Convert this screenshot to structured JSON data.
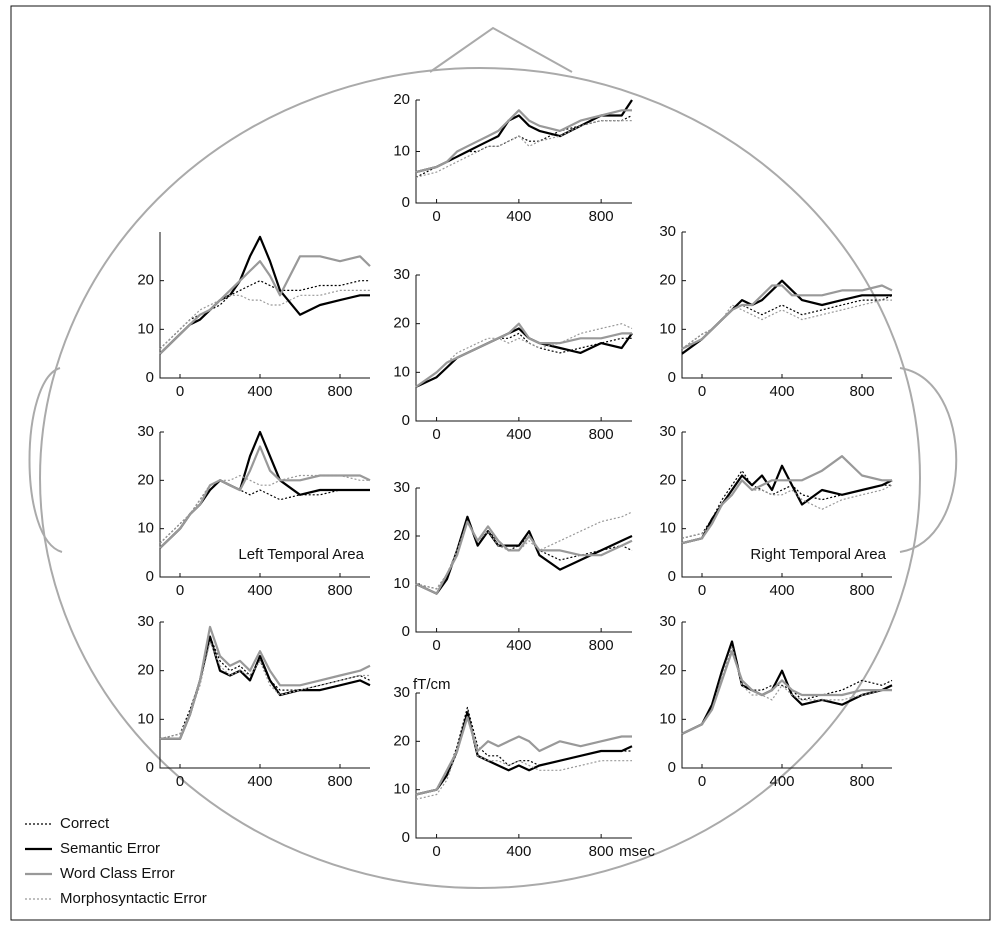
{
  "legend": {
    "entries": [
      {
        "name": "Correct",
        "color": "#000000",
        "style": "dotted",
        "width": 1.2
      },
      {
        "name": "Semantic Error",
        "color": "#000000",
        "style": "solid",
        "width": 2.2
      },
      {
        "name": "Word Class Error",
        "color": "#999999",
        "style": "solid",
        "width": 2.2
      },
      {
        "name": "Morphosyntactic Error",
        "color": "#999999",
        "style": "dotted",
        "width": 1.2
      }
    ]
  },
  "chart_data": [
    {
      "type": "line",
      "x": [
        -100,
        0,
        50,
        100,
        150,
        200,
        250,
        300,
        350,
        400,
        450,
        500,
        600,
        700,
        800,
        900,
        950
      ],
      "xlim": [
        -100,
        950
      ],
      "xticks": [
        0,
        400,
        800
      ],
      "ylim": [
        0,
        20
      ],
      "yticks": [
        0,
        10,
        20
      ],
      "series": [
        {
          "values": [
            5,
            7,
            8,
            9,
            10,
            10,
            11,
            11,
            12,
            13,
            12,
            12,
            14,
            15,
            16,
            16,
            17
          ]
        },
        {
          "values": [
            6,
            7,
            8,
            9,
            10,
            11,
            12,
            13,
            16,
            17,
            15,
            14,
            13,
            15,
            17,
            17,
            20
          ]
        },
        {
          "values": [
            6,
            7,
            8,
            10,
            11,
            12,
            13,
            14,
            16,
            18,
            16,
            15,
            14,
            16,
            17,
            18,
            18
          ]
        },
        {
          "values": [
            5,
            6,
            7,
            8,
            9,
            10,
            11,
            11,
            12,
            13,
            11,
            12,
            13,
            15,
            16,
            16,
            16
          ]
        }
      ]
    },
    {
      "type": "line",
      "x": [
        -100,
        0,
        50,
        100,
        150,
        200,
        250,
        300,
        350,
        400,
        450,
        500,
        600,
        700,
        800,
        900,
        950
      ],
      "xlim": [
        -100,
        950
      ],
      "xticks": [
        0,
        400,
        800
      ],
      "ylim": [
        0,
        30
      ],
      "yticks": [
        0,
        10,
        20
      ],
      "series": [
        {
          "values": [
            6,
            10,
            12,
            13,
            14,
            15,
            17,
            18,
            19,
            20,
            19,
            18,
            18,
            19,
            19,
            20,
            20
          ]
        },
        {
          "values": [
            5,
            9,
            11,
            12,
            14,
            16,
            17,
            20,
            25,
            29,
            24,
            18,
            13,
            15,
            16,
            17,
            17
          ]
        },
        {
          "values": [
            5,
            9,
            11,
            13,
            14,
            16,
            18,
            20,
            22,
            24,
            21,
            17,
            25,
            25,
            24,
            25,
            23
          ]
        },
        {
          "values": [
            6,
            10,
            12,
            14,
            15,
            16,
            17,
            17,
            16,
            16,
            15,
            15,
            17,
            17,
            18,
            18,
            18
          ]
        }
      ]
    },
    {
      "type": "line",
      "x": [
        -100,
        0,
        50,
        100,
        150,
        200,
        250,
        300,
        350,
        400,
        450,
        500,
        600,
        700,
        800,
        900,
        950
      ],
      "xlim": [
        -100,
        950
      ],
      "xticks": [
        0,
        400,
        800
      ],
      "ylim": [
        0,
        30
      ],
      "yticks": [
        0,
        10,
        20,
        30
      ],
      "series": [
        {
          "values": [
            7,
            10,
            12,
            13,
            14,
            15,
            16,
            17,
            17,
            18,
            16,
            15,
            14,
            15,
            16,
            17,
            17
          ]
        },
        {
          "values": [
            7,
            9,
            11,
            13,
            14,
            15,
            16,
            17,
            18,
            19,
            17,
            16,
            15,
            14,
            16,
            15,
            18
          ]
        },
        {
          "values": [
            7,
            10,
            12,
            13,
            14,
            15,
            16,
            17,
            18,
            20,
            17,
            16,
            16,
            17,
            17,
            18,
            18
          ]
        },
        {
          "values": [
            7,
            10,
            12,
            14,
            15,
            16,
            17,
            17,
            16,
            17,
            16,
            15,
            16,
            18,
            19,
            20,
            19
          ]
        }
      ]
    },
    {
      "type": "line",
      "x": [
        -100,
        0,
        50,
        100,
        150,
        200,
        250,
        300,
        350,
        400,
        450,
        500,
        600,
        700,
        800,
        900,
        950
      ],
      "xlim": [
        -100,
        950
      ],
      "xticks": [
        0,
        400,
        800
      ],
      "ylim": [
        0,
        30
      ],
      "yticks": [
        0,
        10,
        20,
        30
      ],
      "series": [
        {
          "values": [
            6,
            9,
            10,
            12,
            14,
            15,
            14,
            13,
            14,
            15,
            14,
            13,
            14,
            15,
            16,
            16,
            17
          ]
        },
        {
          "values": [
            5,
            8,
            10,
            12,
            14,
            16,
            15,
            16,
            18,
            20,
            18,
            16,
            15,
            16,
            17,
            17,
            17
          ]
        },
        {
          "values": [
            6,
            8,
            10,
            12,
            14,
            15,
            15,
            17,
            19,
            19,
            17,
            17,
            17,
            18,
            18,
            19,
            18
          ]
        },
        {
          "values": [
            6,
            9,
            10,
            12,
            15,
            14,
            13,
            12,
            13,
            14,
            13,
            12,
            13,
            14,
            15,
            16,
            16
          ]
        }
      ]
    },
    {
      "type": "line",
      "annotation": "Left Temporal Area",
      "x": [
        -100,
        0,
        50,
        100,
        150,
        200,
        250,
        300,
        350,
        400,
        450,
        500,
        600,
        700,
        800,
        900,
        950
      ],
      "xlim": [
        -100,
        950
      ],
      "xticks": [
        0,
        400,
        800
      ],
      "ylim": [
        0,
        30
      ],
      "yticks": [
        0,
        10,
        20,
        30
      ],
      "series": [
        {
          "values": [
            7,
            11,
            13,
            16,
            19,
            20,
            19,
            18,
            17,
            18,
            17,
            16,
            17,
            17,
            18,
            18,
            18
          ]
        },
        {
          "values": [
            6,
            10,
            13,
            15,
            18,
            20,
            19,
            18,
            25,
            30,
            25,
            20,
            17,
            18,
            18,
            18,
            18
          ]
        },
        {
          "values": [
            6,
            10,
            13,
            15,
            19,
            20,
            19,
            18,
            22,
            27,
            22,
            20,
            20,
            21,
            21,
            21,
            20
          ]
        },
        {
          "values": [
            7,
            11,
            13,
            16,
            19,
            20,
            20,
            21,
            20,
            19,
            19,
            20,
            21,
            21,
            21,
            20,
            20
          ]
        }
      ]
    },
    {
      "type": "line",
      "x": [
        -100,
        0,
        50,
        100,
        150,
        200,
        250,
        300,
        350,
        400,
        450,
        500,
        600,
        700,
        800,
        900,
        950
      ],
      "xlim": [
        -100,
        950
      ],
      "xticks": [
        0,
        400,
        800
      ],
      "ylim": [
        0,
        30
      ],
      "yticks": [
        0,
        10,
        20,
        30
      ],
      "series": [
        {
          "values": [
            10,
            9,
            12,
            17,
            23,
            19,
            21,
            19,
            17,
            18,
            20,
            17,
            15,
            16,
            17,
            18,
            17
          ]
        },
        {
          "values": [
            10,
            8,
            11,
            17,
            24,
            18,
            21,
            18,
            18,
            18,
            21,
            16,
            13,
            15,
            17,
            19,
            20
          ]
        },
        {
          "values": [
            10,
            8,
            12,
            16,
            23,
            19,
            22,
            19,
            17,
            17,
            20,
            17,
            17,
            16,
            16,
            18,
            19
          ]
        },
        {
          "values": [
            10,
            9,
            12,
            17,
            23,
            19,
            21,
            18,
            17,
            17,
            19,
            17,
            19,
            21,
            23,
            24,
            25
          ]
        }
      ]
    },
    {
      "type": "line",
      "annotation": "Right Temporal Area",
      "x": [
        -100,
        0,
        50,
        100,
        150,
        200,
        250,
        300,
        350,
        400,
        450,
        500,
        600,
        700,
        800,
        900,
        950
      ],
      "xlim": [
        -100,
        950
      ],
      "xticks": [
        0,
        400,
        800
      ],
      "ylim": [
        0,
        30
      ],
      "yticks": [
        0,
        10,
        20,
        30
      ],
      "series": [
        {
          "values": [
            8,
            9,
            12,
            16,
            19,
            22,
            19,
            18,
            17,
            18,
            19,
            17,
            16,
            17,
            18,
            19,
            19
          ]
        },
        {
          "values": [
            7,
            8,
            12,
            15,
            18,
            21,
            19,
            21,
            18,
            23,
            19,
            15,
            18,
            17,
            18,
            19,
            20
          ]
        },
        {
          "values": [
            7,
            8,
            11,
            15,
            17,
            20,
            18,
            19,
            20,
            20,
            20,
            20,
            22,
            25,
            21,
            20,
            20
          ]
        },
        {
          "values": [
            8,
            9,
            11,
            15,
            17,
            20,
            18,
            18,
            17,
            17,
            18,
            16,
            14,
            16,
            17,
            18,
            19
          ]
        }
      ]
    },
    {
      "type": "line",
      "x": [
        -100,
        0,
        50,
        100,
        150,
        200,
        250,
        300,
        350,
        400,
        450,
        500,
        600,
        700,
        800,
        900,
        950
      ],
      "xlim": [
        -100,
        950
      ],
      "xticks": [
        0,
        400,
        800
      ],
      "ylim": [
        0,
        30
      ],
      "yticks": [
        0,
        10,
        20,
        30
      ],
      "series": [
        {
          "values": [
            6,
            7,
            12,
            18,
            27,
            22,
            20,
            21,
            19,
            22,
            18,
            16,
            16,
            17,
            18,
            19,
            18
          ]
        },
        {
          "values": [
            6,
            6,
            11,
            18,
            27,
            20,
            19,
            20,
            18,
            23,
            18,
            15,
            16,
            16,
            17,
            18,
            17
          ]
        },
        {
          "values": [
            6,
            6,
            11,
            18,
            29,
            23,
            21,
            22,
            20,
            24,
            20,
            17,
            17,
            18,
            19,
            20,
            21
          ]
        },
        {
          "values": [
            6,
            7,
            11,
            17,
            26,
            21,
            19,
            20,
            19,
            22,
            17,
            15,
            16,
            17,
            18,
            19,
            19
          ]
        }
      ]
    },
    {
      "type": "line",
      "xlabel": "msec",
      "ylabel": "fT/cm",
      "x": [
        -100,
        0,
        50,
        100,
        150,
        200,
        250,
        300,
        350,
        400,
        450,
        500,
        600,
        700,
        800,
        900,
        950
      ],
      "xlim": [
        -100,
        950
      ],
      "xticks": [
        0,
        400,
        800
      ],
      "ylim": [
        0,
        30
      ],
      "yticks": [
        0,
        10,
        20,
        30
      ],
      "series": [
        {
          "values": [
            9,
            10,
            13,
            19,
            27,
            19,
            17,
            17,
            15,
            16,
            16,
            15,
            16,
            17,
            18,
            18,
            18
          ]
        },
        {
          "values": [
            9,
            10,
            13,
            18,
            26,
            17,
            16,
            15,
            14,
            15,
            14,
            15,
            16,
            17,
            18,
            18,
            19
          ]
        },
        {
          "values": [
            9,
            10,
            14,
            18,
            25,
            18,
            20,
            19,
            20,
            21,
            20,
            18,
            20,
            19,
            20,
            21,
            21
          ]
        },
        {
          "values": [
            8,
            9,
            12,
            18,
            25,
            17,
            16,
            16,
            15,
            16,
            15,
            14,
            14,
            15,
            16,
            16,
            16
          ]
        }
      ]
    },
    {
      "type": "line",
      "x": [
        -100,
        0,
        50,
        100,
        150,
        200,
        250,
        300,
        350,
        400,
        450,
        500,
        600,
        700,
        800,
        900,
        950
      ],
      "xlim": [
        -100,
        950
      ],
      "xticks": [
        0,
        400,
        800
      ],
      "ylim": [
        0,
        30
      ],
      "yticks": [
        0,
        10,
        20,
        30
      ],
      "series": [
        {
          "values": [
            7,
            9,
            12,
            18,
            25,
            17,
            16,
            16,
            17,
            17,
            16,
            14,
            15,
            16,
            18,
            17,
            18
          ]
        },
        {
          "values": [
            7,
            9,
            13,
            20,
            26,
            17,
            16,
            15,
            16,
            20,
            15,
            13,
            14,
            13,
            15,
            16,
            17
          ]
        },
        {
          "values": [
            7,
            9,
            12,
            18,
            24,
            18,
            16,
            15,
            16,
            18,
            16,
            15,
            15,
            15,
            16,
            16,
            16
          ]
        },
        {
          "values": [
            7,
            9,
            12,
            19,
            25,
            17,
            15,
            15,
            14,
            17,
            15,
            14,
            14,
            14,
            15,
            16,
            16
          ]
        }
      ]
    }
  ]
}
